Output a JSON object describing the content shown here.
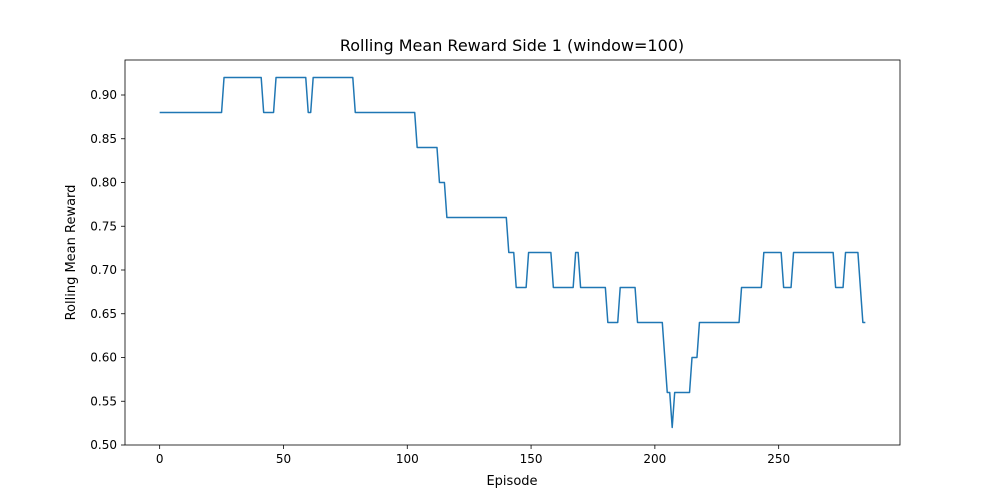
{
  "chart_data": {
    "type": "line",
    "title": "Rolling Mean Reward Side 1 (window=100)",
    "xlabel": "Episode",
    "ylabel": "Rolling Mean Reward",
    "xlim": [
      -14,
      299
    ],
    "ylim": [
      0.5,
      0.94
    ],
    "xticks": [
      0,
      50,
      100,
      150,
      200,
      250
    ],
    "yticks": [
      0.5,
      0.55,
      0.6,
      0.65,
      0.7,
      0.75,
      0.8,
      0.85,
      0.9
    ],
    "ytick_labels": [
      "0.50",
      "0.55",
      "0.60",
      "0.65",
      "0.70",
      "0.75",
      "0.80",
      "0.85",
      "0.90"
    ],
    "grid": false,
    "line_color": "#1f77b4",
    "series": [
      {
        "x": [
          0,
          25,
          26,
          41,
          42,
          46,
          47,
          59,
          60,
          61,
          62,
          78,
          79,
          103,
          104,
          112,
          113,
          115,
          116,
          140,
          141,
          143,
          144,
          148,
          149,
          158,
          159,
          167,
          168,
          169,
          170,
          180,
          181,
          185,
          186,
          192,
          193,
          203,
          204,
          205,
          206,
          207,
          208,
          214,
          215,
          217,
          218,
          234,
          235,
          243,
          244,
          251,
          252,
          255,
          256,
          272,
          273,
          276,
          277,
          282,
          283,
          284,
          285
        ],
        "y": [
          0.88,
          0.88,
          0.92,
          0.92,
          0.88,
          0.88,
          0.92,
          0.92,
          0.88,
          0.88,
          0.92,
          0.92,
          0.88,
          0.88,
          0.84,
          0.84,
          0.8,
          0.8,
          0.76,
          0.76,
          0.72,
          0.72,
          0.68,
          0.68,
          0.72,
          0.72,
          0.68,
          0.68,
          0.72,
          0.72,
          0.68,
          0.68,
          0.64,
          0.64,
          0.68,
          0.68,
          0.64,
          0.64,
          0.6,
          0.56,
          0.56,
          0.52,
          0.56,
          0.56,
          0.6,
          0.6,
          0.64,
          0.64,
          0.68,
          0.68,
          0.72,
          0.72,
          0.68,
          0.68,
          0.72,
          0.72,
          0.68,
          0.68,
          0.72,
          0.72,
          0.68,
          0.64,
          0.64
        ]
      }
    ]
  }
}
